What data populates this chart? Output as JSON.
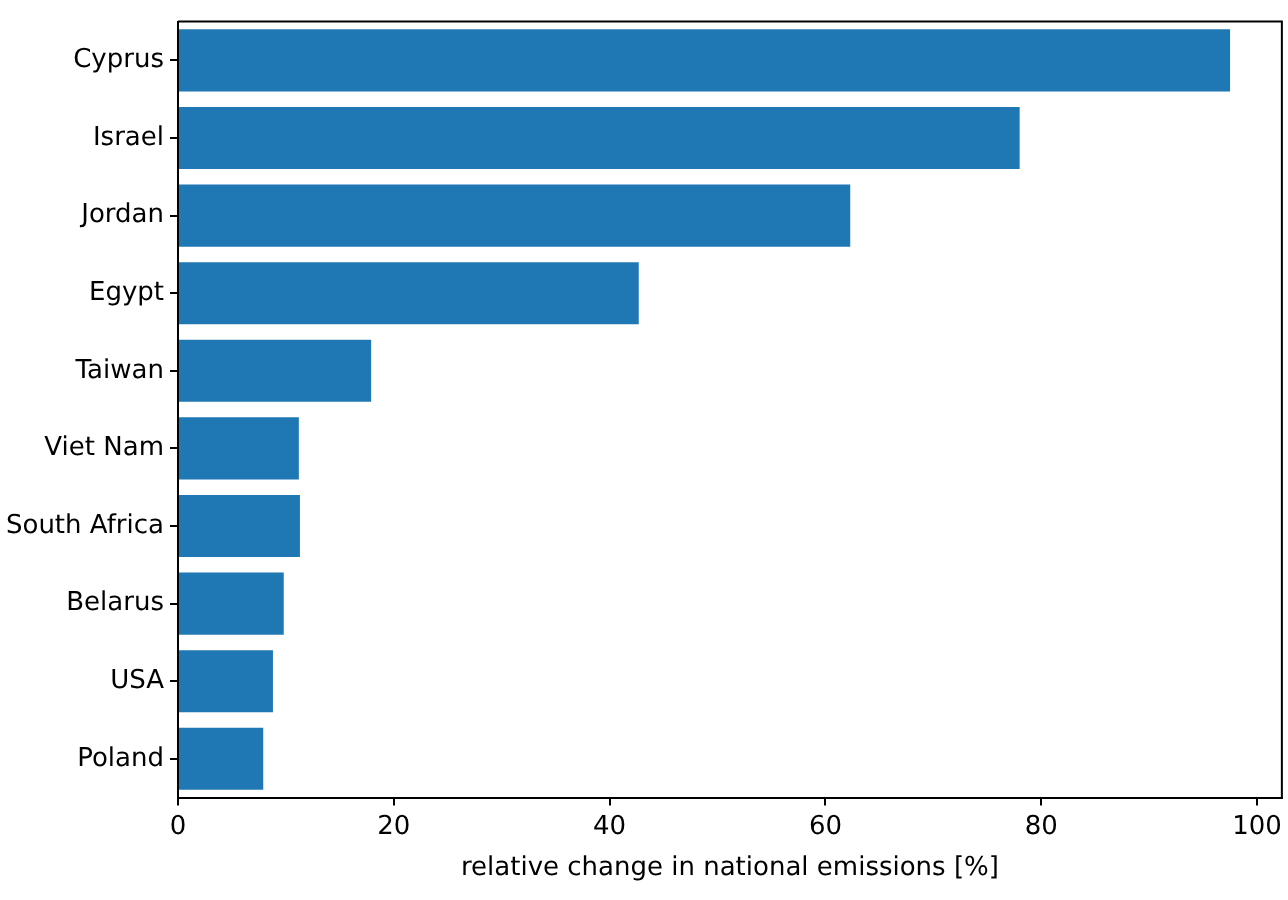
{
  "chart_data": {
    "type": "bar",
    "orientation": "horizontal",
    "xlabel": "relative change in national emissions [%]",
    "categories": [
      "Cyprus",
      "Israel",
      "Jordan",
      "Egypt",
      "Taiwan",
      "Viet Nam",
      "South Africa",
      "Belarus",
      "USA",
      "Poland"
    ],
    "values": [
      97.5,
      78.0,
      62.3,
      42.7,
      17.9,
      11.2,
      11.3,
      9.8,
      8.8,
      7.9
    ],
    "color": "#1f77b4",
    "xlim": [
      0,
      102.3
    ],
    "xticks": [
      0,
      20,
      40,
      60,
      80,
      100
    ],
    "grid": false,
    "legend": false
  }
}
